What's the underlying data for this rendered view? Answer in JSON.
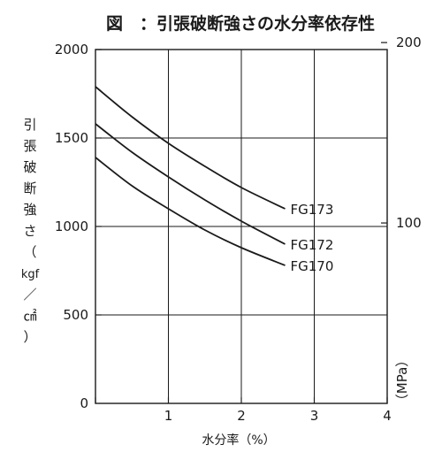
{
  "chart_data": {
    "type": "line",
    "title": "図　：引張破断強さの水分率依存性",
    "xlabel": "水分率（%）",
    "ylabel_chars": [
      "引",
      "張",
      "破",
      "断",
      "強",
      "さ",
      "（",
      "kgf",
      "／",
      "㎠",
      "）"
    ],
    "y2label": "（MPa）",
    "xlim": [
      0,
      4
    ],
    "ylim": [
      0,
      2000
    ],
    "x_ticks": [
      "0",
      "1",
      "2",
      "3",
      "4"
    ],
    "y_ticks": [
      "500",
      "1000",
      "1500",
      "2000"
    ],
    "y_origin_label": "0",
    "y2_ticks": [
      {
        "value": 100,
        "label": "100"
      },
      {
        "value": 200,
        "label": "200"
      }
    ],
    "grid": true,
    "series": [
      {
        "name": "FG173",
        "x": [
          0,
          0.5,
          1,
          1.5,
          2,
          2.6
        ],
        "y": [
          1790,
          1620,
          1470,
          1340,
          1220,
          1100
        ]
      },
      {
        "name": "FG172",
        "x": [
          0,
          0.5,
          1,
          1.5,
          2,
          2.6
        ],
        "y": [
          1580,
          1420,
          1280,
          1150,
          1030,
          900
        ]
      },
      {
        "name": "FG170",
        "x": [
          0,
          0.5,
          1,
          1.5,
          2,
          2.6
        ],
        "y": [
          1390,
          1230,
          1100,
          980,
          880,
          780
        ]
      }
    ]
  },
  "colors": {
    "line": "#1a1a1a",
    "grid": "#1a1a1a",
    "background": "#ffffff"
  }
}
